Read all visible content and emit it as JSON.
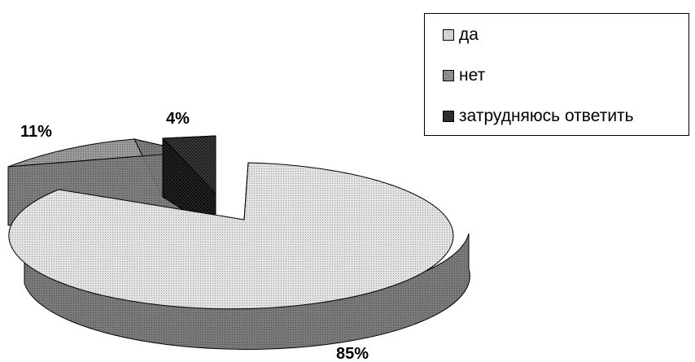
{
  "chart_data": {
    "type": "pie",
    "style": "3d-exploded",
    "slices": [
      {
        "label": "да",
        "value": 85,
        "value_label": "85%",
        "color": "#d0d0d0",
        "side_color": "#7a7a7a"
      },
      {
        "label": "нет",
        "value": 11,
        "value_label": "11%",
        "color": "#8c8c8c",
        "side_color": "#4d4d4d"
      },
      {
        "label": "затрудняюсь ответить",
        "value": 4,
        "value_label": "4%",
        "color": "#2a2a2a",
        "side_color": "#1a1a1a"
      }
    ],
    "legend_position": "top-right"
  }
}
